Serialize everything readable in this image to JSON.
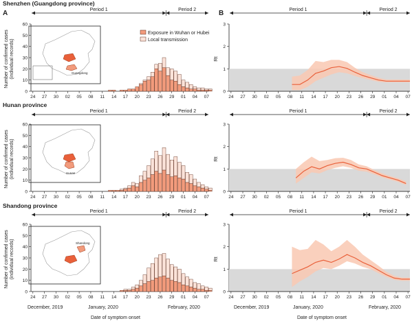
{
  "panel_labels": {
    "a": "A",
    "b": "B"
  },
  "provinces": [
    "Shenzhen (Guangdong province)",
    "Hunan province",
    "Shandong province"
  ],
  "periods": {
    "p1": "Period 1",
    "p2": "Period 2"
  },
  "legend": {
    "wuhan": "Exposure in Wuhan or Hubei",
    "local": "Local transmission"
  },
  "ylabel_cases": [
    "Number of confirmed cases",
    "(individual records)"
  ],
  "ylabel_rt": "Rt",
  "xlabel": "Date of symptom onset",
  "month_labels": {
    "dec": "December, 2019",
    "jan": "January, 2020",
    "feb": "February, 2020"
  },
  "map_labels": {
    "guangdong": "Guangdong",
    "hunan": "Hunan",
    "shandong": "Shandong"
  },
  "colors": {
    "wuhan": "#f29b7c",
    "local": "#fbe3d9",
    "bar_edge": "#5a2a1a",
    "rt_line": "#e9603a",
    "rt_band": "#f9c8b2",
    "ref_band": "#d9d9d9"
  },
  "chart_data": [
    {
      "type": "bar",
      "title": "Shenzhen (Guangdong province)",
      "ylabel": "Number of confirmed cases (individual records)",
      "xlabel": "Date of symptom onset",
      "ylim": [
        0,
        60
      ],
      "yticks": [
        0,
        10,
        20,
        30,
        40,
        50,
        60
      ],
      "x_tick_labels": [
        "24",
        "27",
        "30",
        "02",
        "05",
        "08",
        "11",
        "14",
        "17",
        "20",
        "23",
        "26",
        "29",
        "01",
        "04",
        "07"
      ],
      "x_start": "2019-12-24",
      "x_end": "2020-02-08",
      "period_split": "2020-01-28",
      "series": [
        {
          "name": "Exposure in Wuhan or Hubei",
          "values": [
            0,
            0,
            0,
            0,
            0,
            0,
            0,
            0,
            0,
            0,
            0,
            0,
            0,
            0,
            0,
            0,
            0,
            0,
            0,
            0,
            1,
            1,
            0,
            1,
            1,
            2,
            2,
            4,
            6,
            9,
            10,
            13,
            20,
            18,
            21,
            14,
            10,
            9,
            6,
            4,
            3,
            2,
            2,
            1,
            1,
            1,
            1
          ]
        },
        {
          "name": "Local transmission",
          "values": [
            0,
            0,
            0,
            0,
            0,
            0,
            0,
            0,
            0,
            0,
            0,
            0,
            0,
            0,
            0,
            0,
            0,
            0,
            0,
            0,
            0,
            0,
            0,
            0,
            0,
            0,
            0,
            0,
            1,
            1,
            3,
            4,
            4,
            7,
            9,
            7,
            10,
            9,
            9,
            6,
            5,
            4,
            2,
            2,
            2,
            1,
            1
          ]
        }
      ]
    },
    {
      "type": "bar",
      "title": "Hunan province",
      "ylabel": "Number of confirmed cases (individual records)",
      "xlabel": "Date of symptom onset",
      "ylim": [
        0,
        60
      ],
      "yticks": [
        0,
        10,
        20,
        30,
        40,
        50,
        60
      ],
      "x_tick_labels": [
        "24",
        "27",
        "30",
        "02",
        "05",
        "08",
        "11",
        "14",
        "17",
        "20",
        "23",
        "26",
        "29",
        "01",
        "04",
        "07"
      ],
      "x_start": "2019-12-24",
      "x_end": "2020-02-08",
      "period_split": "2020-01-28",
      "series": [
        {
          "name": "Exposure in Wuhan or Hubei",
          "values": [
            0,
            0,
            0,
            0,
            0,
            0,
            0,
            0,
            0,
            0,
            0,
            0,
            0,
            0,
            0,
            0,
            0,
            0,
            0,
            0,
            1,
            1,
            1,
            1,
            2,
            3,
            5,
            4,
            8,
            10,
            12,
            15,
            18,
            16,
            19,
            15,
            13,
            14,
            12,
            11,
            8,
            7,
            5,
            4,
            3,
            2,
            1
          ]
        },
        {
          "name": "Local transmission",
          "values": [
            0,
            0,
            0,
            0,
            0,
            0,
            0,
            0,
            0,
            0,
            0,
            0,
            0,
            0,
            0,
            0,
            0,
            0,
            0,
            0,
            0,
            0,
            0,
            1,
            1,
            2,
            3,
            3,
            6,
            8,
            11,
            14,
            18,
            16,
            20,
            18,
            15,
            17,
            14,
            12,
            9,
            8,
            6,
            4,
            3,
            2,
            2
          ]
        }
      ]
    },
    {
      "type": "bar",
      "title": "Shandong province",
      "ylabel": "Number of confirmed cases (individual records)",
      "xlabel": "Date of symptom onset",
      "ylim": [
        0,
        60
      ],
      "yticks": [
        0,
        10,
        20,
        30,
        40,
        50,
        60
      ],
      "x_tick_labels": [
        "24",
        "27",
        "30",
        "02",
        "05",
        "08",
        "11",
        "14",
        "17",
        "20",
        "23",
        "26",
        "29",
        "01",
        "04",
        "07"
      ],
      "x_start": "2019-12-24",
      "x_end": "2020-02-08",
      "period_split": "2020-01-28",
      "series": [
        {
          "name": "Exposure in Wuhan or Hubei",
          "values": [
            0,
            0,
            0,
            0,
            0,
            0,
            0,
            0,
            0,
            0,
            0,
            0,
            0,
            0,
            0,
            0,
            0,
            0,
            0,
            0,
            0,
            0,
            0,
            1,
            1,
            1,
            2,
            3,
            5,
            7,
            9,
            10,
            12,
            13,
            14,
            12,
            10,
            9,
            8,
            6,
            5,
            4,
            3,
            2,
            2,
            1,
            1
          ]
        },
        {
          "name": "Local transmission",
          "values": [
            0,
            0,
            0,
            0,
            0,
            0,
            0,
            0,
            0,
            0,
            0,
            0,
            0,
            0,
            0,
            0,
            0,
            0,
            0,
            0,
            0,
            0,
            0,
            0,
            1,
            1,
            2,
            3,
            5,
            8,
            12,
            15,
            18,
            20,
            20,
            17,
            14,
            13,
            12,
            10,
            8,
            7,
            5,
            5,
            3,
            3,
            2
          ]
        }
      ]
    },
    {
      "type": "line",
      "title": "Shenzhen (Guangdong province)",
      "ylabel": "Rt",
      "xlabel": "Date of symptom onset",
      "ylim": [
        0,
        3
      ],
      "yticks": [
        0,
        1,
        2,
        3
      ],
      "ref_band": [
        0,
        1
      ],
      "x_tick_labels": [
        "24",
        "27",
        "30",
        "02",
        "05",
        "08",
        "11",
        "14",
        "17",
        "20",
        "23",
        "26",
        "29",
        "01",
        "04",
        "07"
      ],
      "x_start": "2019-12-24",
      "x_end": "2020-02-08",
      "period_split": "2020-01-28",
      "x": [
        "2020-01-09",
        "2020-01-11",
        "2020-01-13",
        "2020-01-15",
        "2020-01-17",
        "2020-01-19",
        "2020-01-21",
        "2020-01-23",
        "2020-01-25",
        "2020-01-27",
        "2020-01-29",
        "2020-01-31",
        "2020-02-02",
        "2020-02-04",
        "2020-02-06",
        "2020-02-08"
      ],
      "y": [
        0.3,
        0.3,
        0.5,
        0.8,
        0.9,
        1.05,
        1.1,
        1.02,
        0.85,
        0.7,
        0.6,
        0.5,
        0.45,
        0.45,
        0.45,
        0.45
      ],
      "y_low": [
        0.05,
        0.05,
        0.2,
        0.45,
        0.6,
        0.75,
        0.85,
        0.8,
        0.68,
        0.58,
        0.5,
        0.42,
        0.4,
        0.4,
        0.4,
        0.4
      ],
      "y_high": [
        0.65,
        0.7,
        0.95,
        1.35,
        1.3,
        1.4,
        1.4,
        1.3,
        1.05,
        0.85,
        0.72,
        0.6,
        0.52,
        0.52,
        0.52,
        0.52
      ]
    },
    {
      "type": "line",
      "title": "Hunan province",
      "ylabel": "Rt",
      "xlabel": "Date of symptom onset",
      "ylim": [
        0,
        3
      ],
      "yticks": [
        0,
        1,
        2,
        3
      ],
      "ref_band": [
        0,
        1
      ],
      "x_tick_labels": [
        "24",
        "27",
        "30",
        "02",
        "05",
        "08",
        "11",
        "14",
        "17",
        "20",
        "23",
        "26",
        "29",
        "01",
        "04",
        "07"
      ],
      "x_start": "2019-12-24",
      "x_end": "2020-02-08",
      "period_split": "2020-01-28",
      "x": [
        "2020-01-10",
        "2020-01-12",
        "2020-01-14",
        "2020-01-16",
        "2020-01-18",
        "2020-01-20",
        "2020-01-22",
        "2020-01-24",
        "2020-01-26",
        "2020-01-28",
        "2020-01-30",
        "2020-02-01",
        "2020-02-03",
        "2020-02-05",
        "2020-02-07"
      ],
      "y": [
        0.6,
        0.9,
        1.1,
        1.0,
        1.15,
        1.25,
        1.3,
        1.2,
        1.05,
        1.0,
        0.85,
        0.7,
        0.6,
        0.5,
        0.35
      ],
      "y_low": [
        0.35,
        0.6,
        0.85,
        0.8,
        0.95,
        1.05,
        1.12,
        1.05,
        0.92,
        0.88,
        0.75,
        0.62,
        0.52,
        0.42,
        0.28
      ],
      "y_high": [
        1.0,
        1.3,
        1.55,
        1.35,
        1.4,
        1.48,
        1.5,
        1.4,
        1.2,
        1.12,
        0.95,
        0.8,
        0.68,
        0.58,
        0.45
      ]
    },
    {
      "type": "line",
      "title": "Shandong province",
      "ylabel": "Rt",
      "xlabel": "Date of symptom onset",
      "ylim": [
        0,
        3
      ],
      "yticks": [
        0,
        1,
        2,
        3
      ],
      "ref_band": [
        0,
        1
      ],
      "x_tick_labels": [
        "24",
        "27",
        "30",
        "02",
        "05",
        "08",
        "11",
        "14",
        "17",
        "20",
        "23",
        "26",
        "29",
        "01",
        "04",
        "07"
      ],
      "x_start": "2019-12-24",
      "x_end": "2020-02-08",
      "period_split": "2020-01-28",
      "x": [
        "2020-01-09",
        "2020-01-11",
        "2020-01-13",
        "2020-01-15",
        "2020-01-17",
        "2020-01-19",
        "2020-01-21",
        "2020-01-23",
        "2020-01-25",
        "2020-01-27",
        "2020-01-29",
        "2020-01-31",
        "2020-02-02",
        "2020-02-04",
        "2020-02-06",
        "2020-02-08"
      ],
      "y": [
        0.8,
        0.95,
        1.1,
        1.3,
        1.4,
        1.3,
        1.45,
        1.65,
        1.5,
        1.3,
        1.15,
        0.95,
        0.75,
        0.6,
        0.55,
        0.55
      ],
      "y_low": [
        0.2,
        0.45,
        0.65,
        0.9,
        1.05,
        1.0,
        1.15,
        1.35,
        1.25,
        1.1,
        1.0,
        0.82,
        0.65,
        0.52,
        0.48,
        0.48
      ],
      "y_high": [
        2.0,
        1.85,
        1.9,
        2.3,
        2.1,
        1.8,
        2.0,
        2.3,
        2.0,
        1.65,
        1.4,
        1.15,
        0.88,
        0.7,
        0.62,
        0.62
      ]
    }
  ]
}
